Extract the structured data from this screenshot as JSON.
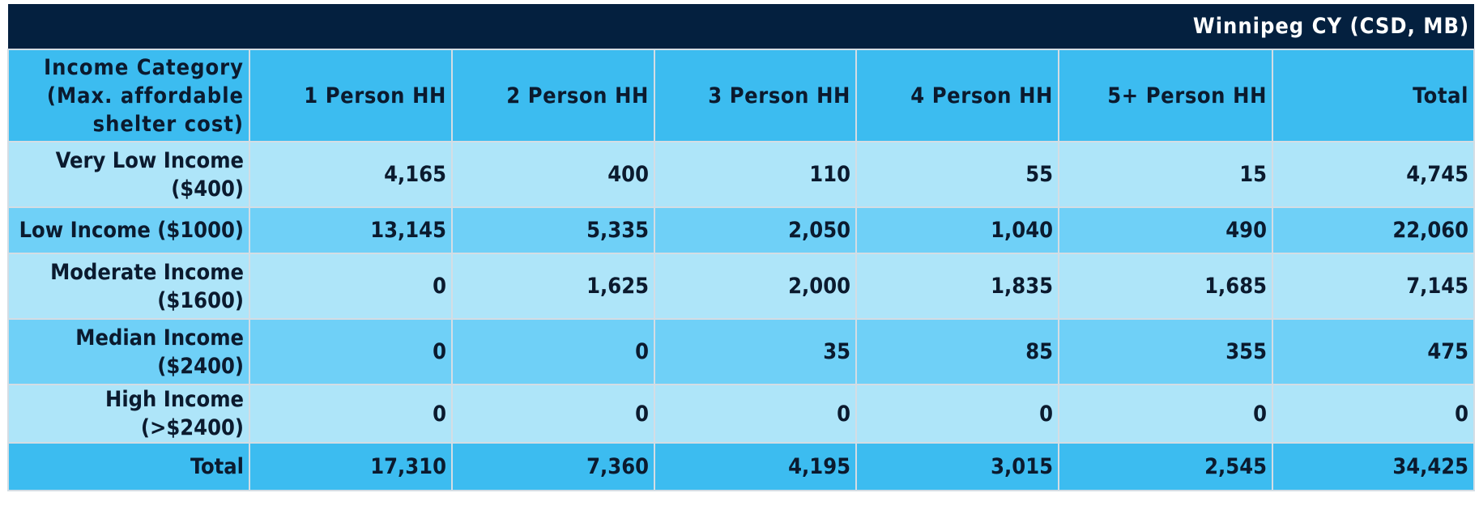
{
  "table": {
    "title": "Winnipeg CY (CSD, MB)",
    "header": {
      "category_line1": "Income Category",
      "category_line2": "(Max. affordable",
      "category_line3": "shelter cost)",
      "columns": [
        "1 Person HH",
        "2 Person HH",
        "3 Person HH",
        "4 Person HH",
        "5+ Person HH",
        "Total"
      ]
    },
    "rows": [
      {
        "label_line1": "Very Low Income",
        "label_line2": "($400)",
        "values": [
          "4,165",
          "400",
          "110",
          "55",
          "15",
          "4,745"
        ]
      },
      {
        "label_line1": "Low Income ($1000)",
        "label_line2": "",
        "values": [
          "13,145",
          "5,335",
          "2,050",
          "1,040",
          "490",
          "22,060"
        ]
      },
      {
        "label_line1": "Moderate Income",
        "label_line2": "($1600)",
        "values": [
          "0",
          "1,625",
          "2,000",
          "1,835",
          "1,685",
          "7,145"
        ]
      },
      {
        "label_line1": "Median Income",
        "label_line2": "($2400)",
        "values": [
          "0",
          "0",
          "35",
          "85",
          "355",
          "475"
        ]
      },
      {
        "label_line1": "High Income (>$2400)",
        "label_line2": "",
        "values": [
          "0",
          "0",
          "0",
          "0",
          "0",
          "0"
        ]
      }
    ],
    "total": {
      "label": "Total",
      "values": [
        "17,310",
        "7,360",
        "4,195",
        "3,015",
        "2,545",
        "34,425"
      ]
    }
  }
}
